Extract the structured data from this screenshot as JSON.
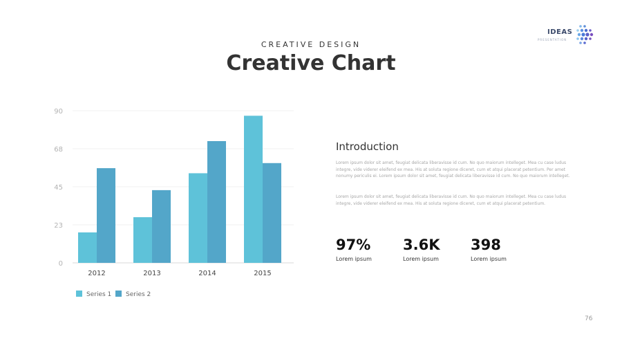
{
  "header": {
    "subtitle": "CREATIVE DESIGN",
    "title": "Creative Chart"
  },
  "logo": {
    "word": "IDEAS",
    "tagline": "PRESENTATION"
  },
  "chart_data": {
    "type": "bar",
    "categories": [
      "2012",
      "2013",
      "2014",
      "2015"
    ],
    "series": [
      {
        "name": "Series 1",
        "values": [
          18,
          27,
          53,
          87
        ],
        "color": "#5ec2d9"
      },
      {
        "name": "Series 2",
        "values": [
          56,
          43,
          72,
          59
        ],
        "color": "#53a6c9"
      }
    ],
    "ylim": [
      0,
      90
    ],
    "yticks": [
      "0",
      "23",
      "45",
      "68",
      "90"
    ],
    "ytick_values": [
      0,
      22.5,
      45,
      67.5,
      90
    ],
    "grid": true,
    "legend": "bottom"
  },
  "intro": {
    "title": "Introduction",
    "paragraphs": [
      "Lorem ipsum dolor sit amet, feugiat delicata liberavisse id cum. No quo maiorum intelleget. Mea cu case ludus integre, vide viderer eleifend ex mea. His at soluta regione diceret, cum et atqui placerat petentium. Per amet nonumy periculis ei. Lorem ipsum dolor sit amet, feugiat delicata liberavisse id cum. No quo maiorum intelleget.",
      "Lorem ipsum dolor sit amet, feugiat delicata liberavisse id cum. No quo maiorum intelleget. Mea cu case ludus integre, vide viderer eleifend ex mea. His at soluta regione diceret, cum et atqui placerat petentium."
    ]
  },
  "stats": [
    {
      "value": "97%",
      "label": "Lorem ipsum"
    },
    {
      "value": "3.6K",
      "label": "Lorem ipsum"
    },
    {
      "value": "398",
      "label": "Lorem ipsum"
    }
  ],
  "page_number": "76"
}
